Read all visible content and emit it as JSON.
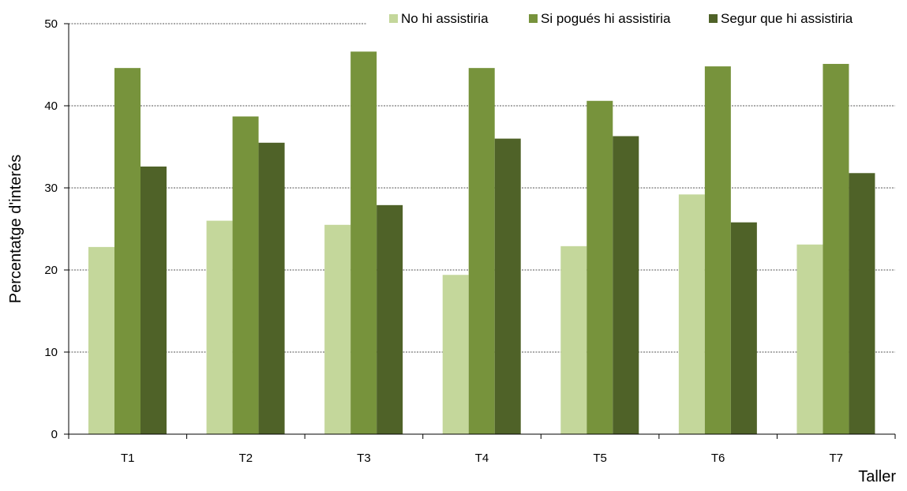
{
  "chart_data": {
    "type": "bar",
    "title": "",
    "xlabel": "Taller",
    "ylabel": "Percentatge d'interés",
    "ylim": [
      0,
      50
    ],
    "yticks": [
      0,
      10,
      20,
      30,
      40,
      50
    ],
    "grid": true,
    "legend_position": "top-right",
    "categories": [
      "T1",
      "T2",
      "T3",
      "T4",
      "T5",
      "T6",
      "T7"
    ],
    "series": [
      {
        "name": "No hi assistiria",
        "color": "#c4d79b",
        "values": [
          22.8,
          26.0,
          25.5,
          19.4,
          22.9,
          29.2,
          23.1
        ]
      },
      {
        "name": "Si pogués hi assistiria",
        "color": "#77933c",
        "values": [
          44.6,
          38.7,
          46.6,
          44.6,
          40.6,
          44.8,
          45.1
        ]
      },
      {
        "name": "Segur que hi assistiria",
        "color": "#4f6228",
        "values": [
          32.6,
          35.5,
          27.9,
          36.0,
          36.3,
          25.8,
          31.8
        ]
      }
    ]
  }
}
